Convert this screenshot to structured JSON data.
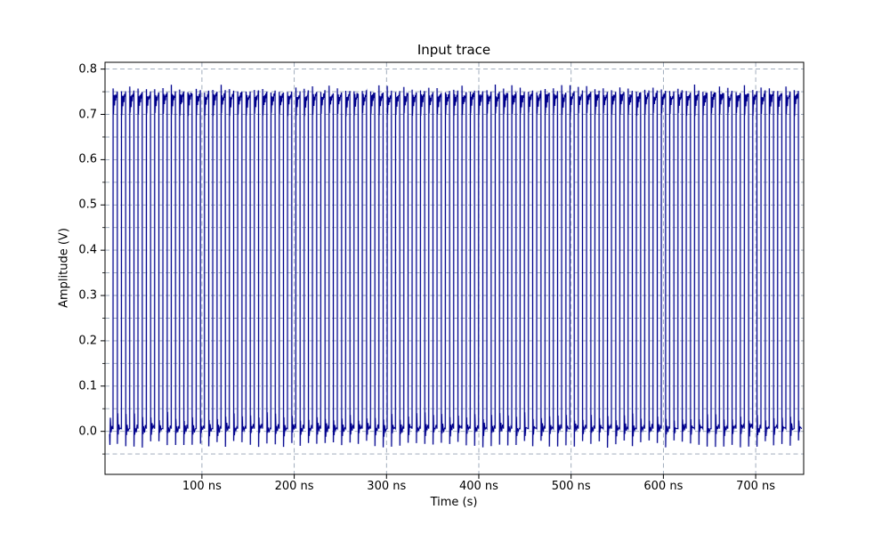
{
  "figure": {
    "background": "#ffffff",
    "text_color": "#000000"
  },
  "chart_data": {
    "type": "line",
    "title": "Input trace",
    "xlabel": "Time (s)",
    "ylabel": "Amplitude (V)",
    "xlim_ns": [
      -5,
      752
    ],
    "ylim_v": [
      -0.095,
      0.815
    ],
    "x_ticks": [
      {
        "value": 100,
        "label": "100 ns"
      },
      {
        "value": 200,
        "label": "200 ns"
      },
      {
        "value": 300,
        "label": "300 ns"
      },
      {
        "value": 400,
        "label": "400 ns"
      },
      {
        "value": 500,
        "label": "500 ns"
      },
      {
        "value": 600,
        "label": "600 ns"
      },
      {
        "value": 700,
        "label": "700 ns"
      }
    ],
    "y_ticks": [
      {
        "value": 0.0,
        "label": "0.0"
      },
      {
        "value": 0.1,
        "label": "0.1"
      },
      {
        "value": 0.2,
        "label": "0.2"
      },
      {
        "value": 0.3,
        "label": "0.3"
      },
      {
        "value": 0.4,
        "label": "0.4"
      },
      {
        "value": 0.5,
        "label": "0.5"
      },
      {
        "value": 0.6,
        "label": "0.6"
      },
      {
        "value": 0.7,
        "label": "0.7"
      },
      {
        "value": 0.8,
        "label": "0.8"
      }
    ],
    "y_minor_ticks": [
      -0.05,
      0.05,
      0.15,
      0.25,
      0.35,
      0.45,
      0.55,
      0.65,
      0.75
    ],
    "grid": {
      "on": true,
      "style": "dashed",
      "color": "#8494a8",
      "horizontal_step_v": 0.05,
      "horizontal_min_v": -0.05,
      "horizontal_max_v": 0.8,
      "vertical_at_x_ticks": true
    },
    "legend": "none",
    "trace": {
      "color": "#00008b",
      "glow_color": "#9099d9",
      "width": 1.05
    },
    "signal": {
      "description": "periodic square pulse train, ~9 ns period, with leading-edge overshoot ringing and falling-edge undershoot",
      "t_start_ns": 0,
      "t_end_ns": 750,
      "period_ns": 9.0,
      "first_rise_ns": 3.7,
      "high_dwell_ns": 4.7,
      "low_level_v": 0.006,
      "top_ramp_v": [
        0.723,
        0.746
      ],
      "overshoot_peak_v_range": [
        0.748,
        0.766
      ],
      "ring_amplitude_v": 0.02,
      "undershoot_v_range": [
        -0.02,
        -0.036
      ],
      "low_recovery_bump_v": 0.033,
      "noise_v": 0.008,
      "seed": 11
    }
  }
}
